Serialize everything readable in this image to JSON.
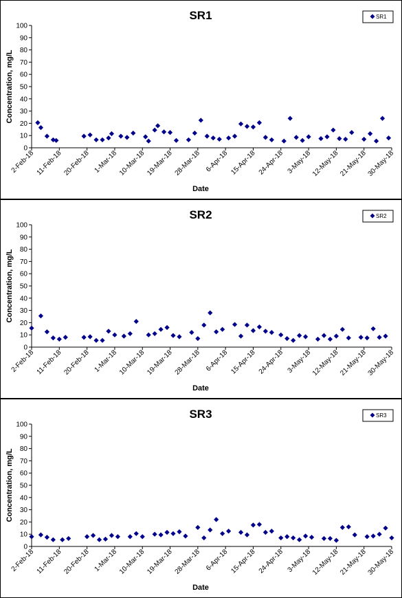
{
  "colors": {
    "marker": "#00008B",
    "axis": "#000000",
    "frame": "#000000"
  },
  "chart_data": [
    {
      "type": "scatter",
      "title": "SR1",
      "xlabel": "Date",
      "ylabel": "Concentration, mg/L",
      "legend": "top-right",
      "grid": false,
      "marker": "diamond",
      "ylim": [
        0,
        100
      ],
      "yticks": [
        0,
        10,
        20,
        30,
        40,
        50,
        60,
        70,
        80,
        90,
        100
      ],
      "xlim": [
        "2018-02-02",
        "2018-05-30"
      ],
      "xticks": [
        "2-Feb-18",
        "11-Feb-18",
        "20-Feb-18",
        "1-Mar-18",
        "10-Mar-18",
        "19-Mar-18",
        "28-Mar-18",
        "6-Apr-18",
        "15-Apr-18",
        "24-Apr-18",
        "3-May-18",
        "12-May-18",
        "21-May-18",
        "30-May-18"
      ],
      "series": [
        {
          "name": "SR1",
          "x": [
            "2018-02-04",
            "2018-02-05",
            "2018-02-07",
            "2018-02-09",
            "2018-02-10",
            "2018-02-19",
            "2018-02-21",
            "2018-02-23",
            "2018-02-25",
            "2018-02-27",
            "2018-02-28",
            "2018-03-03",
            "2018-03-05",
            "2018-03-07",
            "2018-03-11",
            "2018-03-12",
            "2018-03-14",
            "2018-03-15",
            "2018-03-17",
            "2018-03-19",
            "2018-03-21",
            "2018-03-25",
            "2018-03-27",
            "2018-03-29",
            "2018-03-31",
            "2018-04-02",
            "2018-04-04",
            "2018-04-07",
            "2018-04-09",
            "2018-04-11",
            "2018-04-13",
            "2018-04-15",
            "2018-04-17",
            "2018-04-19",
            "2018-04-21",
            "2018-04-25",
            "2018-04-27",
            "2018-04-29",
            "2018-05-01",
            "2018-05-03",
            "2018-05-07",
            "2018-05-09",
            "2018-05-11",
            "2018-05-13",
            "2018-05-15",
            "2018-05-17",
            "2018-05-21",
            "2018-05-23",
            "2018-05-25",
            "2018-05-27",
            "2018-05-29"
          ],
          "y": [
            20.5,
            16.5,
            9.5,
            6.5,
            6,
            9.5,
            10.5,
            6.5,
            6.5,
            8,
            11.5,
            9.5,
            8.5,
            12,
            9,
            5.5,
            14.5,
            18,
            13,
            12.5,
            6,
            6.5,
            12,
            22.5,
            9.5,
            8,
            7,
            8,
            9.5,
            19.5,
            17.5,
            17,
            20.5,
            8.5,
            6.5,
            5.5,
            24,
            8.5,
            6,
            9,
            7.5,
            9,
            14.5,
            7.5,
            7,
            12.5,
            7,
            11.5,
            5.5,
            24,
            8
          ]
        }
      ]
    },
    {
      "type": "scatter",
      "title": "SR2",
      "xlabel": "Date",
      "ylabel": "Concentration, mg/L",
      "legend": "top-right",
      "grid": false,
      "marker": "diamond",
      "ylim": [
        0,
        100
      ],
      "yticks": [
        0,
        10,
        20,
        30,
        40,
        50,
        60,
        70,
        80,
        90,
        100
      ],
      "xlim": [
        "2018-02-02",
        "2018-05-30"
      ],
      "xticks": [
        "2-Feb-18",
        "11-Feb-18",
        "20-Feb-18",
        "1-Mar-18",
        "10-Mar-18",
        "19-Mar-18",
        "28-Mar-18",
        "6-Apr-18",
        "15-Apr-18",
        "24-Apr-18",
        "3-May-18",
        "12-May-18",
        "21-May-18",
        "30-May-18"
      ],
      "series": [
        {
          "name": "SR2",
          "x": [
            "2018-02-02",
            "2018-02-05",
            "2018-02-07",
            "2018-02-09",
            "2018-02-11",
            "2018-02-13",
            "2018-02-19",
            "2018-02-21",
            "2018-02-23",
            "2018-02-25",
            "2018-02-27",
            "2018-03-01",
            "2018-03-04",
            "2018-03-06",
            "2018-03-08",
            "2018-03-12",
            "2018-03-14",
            "2018-03-16",
            "2018-03-18",
            "2018-03-20",
            "2018-03-22",
            "2018-03-26",
            "2018-03-28",
            "2018-03-30",
            "2018-04-01",
            "2018-04-03",
            "2018-04-05",
            "2018-04-09",
            "2018-04-11",
            "2018-04-13",
            "2018-04-15",
            "2018-04-17",
            "2018-04-19",
            "2018-04-21",
            "2018-04-24",
            "2018-04-26",
            "2018-04-28",
            "2018-04-30",
            "2018-05-02",
            "2018-05-06",
            "2018-05-08",
            "2018-05-10",
            "2018-05-12",
            "2018-05-14",
            "2018-05-16",
            "2018-05-20",
            "2018-05-22",
            "2018-05-24",
            "2018-05-26",
            "2018-05-28"
          ],
          "y": [
            15.5,
            25.5,
            12.5,
            7.5,
            6.5,
            8,
            8,
            8.5,
            5.5,
            5.5,
            13,
            10,
            9,
            11,
            21,
            10,
            11,
            14.5,
            16,
            9.5,
            8.5,
            12,
            7,
            18,
            28,
            12.5,
            14.5,
            18.5,
            9,
            18,
            13.5,
            16.5,
            13,
            12,
            10,
            7,
            5.5,
            9.5,
            8.5,
            6.5,
            9.5,
            6.5,
            9,
            14.5,
            7.5,
            8,
            7.5,
            15,
            8,
            9
          ]
        }
      ]
    },
    {
      "type": "scatter",
      "title": "SR3",
      "xlabel": "Date",
      "ylabel": "Concentration, mg/L",
      "legend": "top-right",
      "grid": false,
      "marker": "diamond",
      "ylim": [
        0,
        100
      ],
      "yticks": [
        0,
        10,
        20,
        30,
        40,
        50,
        60,
        70,
        80,
        90,
        100
      ],
      "xlim": [
        "2018-02-02",
        "2018-05-30"
      ],
      "xticks": [
        "2-Feb-18",
        "11-Feb-18",
        "20-Feb-18",
        "1-Mar-18",
        "10-Mar-18",
        "19-Mar-18",
        "28-Mar-18",
        "6-Apr-18",
        "15-Apr-18",
        "24-Apr-18",
        "3-May-18",
        "12-May-18",
        "21-May-18",
        "30-May-18"
      ],
      "series": [
        {
          "name": "SR3",
          "x": [
            "2018-02-02",
            "2018-02-05",
            "2018-02-07",
            "2018-02-09",
            "2018-02-12",
            "2018-02-14",
            "2018-02-20",
            "2018-02-22",
            "2018-02-24",
            "2018-02-26",
            "2018-02-28",
            "2018-03-02",
            "2018-03-06",
            "2018-03-08",
            "2018-03-10",
            "2018-03-14",
            "2018-03-16",
            "2018-03-18",
            "2018-03-20",
            "2018-03-22",
            "2018-03-24",
            "2018-03-28",
            "2018-03-30",
            "2018-04-01",
            "2018-04-03",
            "2018-04-05",
            "2018-04-07",
            "2018-04-11",
            "2018-04-13",
            "2018-04-15",
            "2018-04-17",
            "2018-04-19",
            "2018-04-21",
            "2018-04-24",
            "2018-04-26",
            "2018-04-28",
            "2018-04-30",
            "2018-05-02",
            "2018-05-04",
            "2018-05-08",
            "2018-05-10",
            "2018-05-12",
            "2018-05-14",
            "2018-05-16",
            "2018-05-18",
            "2018-05-22",
            "2018-05-24",
            "2018-05-26",
            "2018-05-28",
            "2018-05-30"
          ],
          "y": [
            8,
            9.5,
            7.5,
            5.5,
            5.5,
            6.5,
            8,
            9,
            5.5,
            6,
            9,
            8,
            8,
            10.5,
            8,
            10,
            9.5,
            11.5,
            10.5,
            12,
            8.5,
            15.5,
            7,
            13.5,
            22,
            10.5,
            12.5,
            11.5,
            9.5,
            17.5,
            18,
            11.5,
            12.5,
            7,
            8,
            7,
            5.5,
            8.5,
            7.5,
            6.5,
            6.5,
            5,
            15.5,
            16,
            9.5,
            8,
            8.5,
            10,
            15,
            7
          ]
        }
      ]
    }
  ]
}
